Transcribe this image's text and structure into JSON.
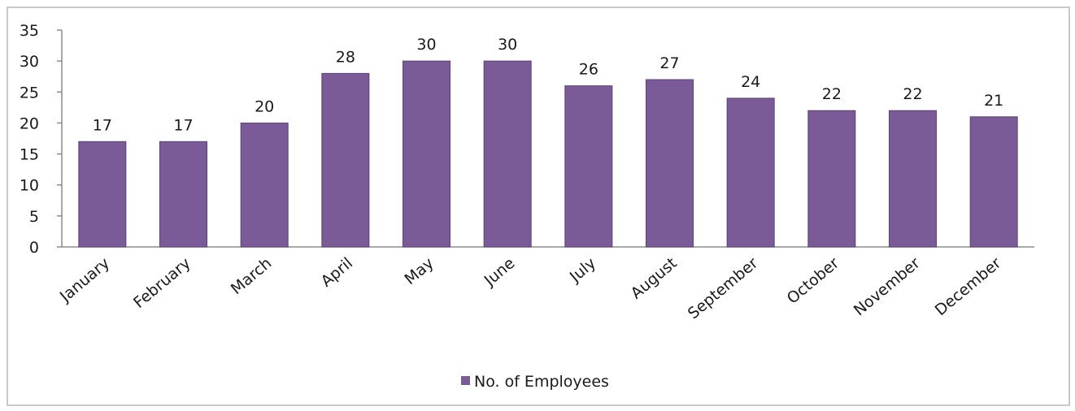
{
  "chart_data": {
    "type": "bar",
    "categories": [
      "January",
      "February",
      "March",
      "April",
      "May",
      "June",
      "July",
      "August",
      "September",
      "October",
      "November",
      "December"
    ],
    "series": [
      {
        "name": "No. of Employees",
        "values": [
          17,
          17,
          20,
          28,
          30,
          30,
          26,
          27,
          24,
          22,
          22,
          21
        ],
        "color": "#7b5b97"
      }
    ],
    "y_ticks": [
      0,
      5,
      10,
      15,
      20,
      25,
      30,
      35
    ],
    "ylim": [
      0,
      35
    ],
    "data_labels": true,
    "grid": false,
    "legend_position": "bottom"
  }
}
